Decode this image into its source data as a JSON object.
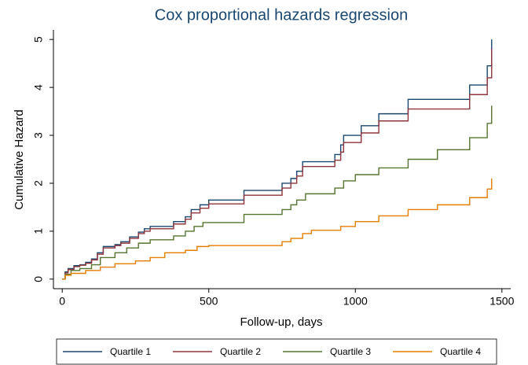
{
  "chart_data": {
    "type": "step",
    "title": "Cox proportional hazards regression",
    "xlabel": "Follow-up, days",
    "ylabel": "Cumulative Hazard",
    "xlim": [
      -30,
      1530
    ],
    "ylim": [
      -0.2,
      5.2
    ],
    "xticks": [
      0,
      500,
      1000,
      1500
    ],
    "yticks": [
      0,
      1,
      2,
      3,
      4,
      5
    ],
    "legend": "bottom",
    "series": [
      {
        "name": "Quartile 1",
        "color": "#1a476f",
        "x": [
          0,
          10,
          20,
          40,
          60,
          80,
          100,
          120,
          140,
          180,
          200,
          230,
          260,
          280,
          300,
          380,
          420,
          440,
          470,
          500,
          620,
          750,
          780,
          800,
          820,
          930,
          950,
          960,
          1020,
          1080,
          1180,
          1390,
          1450,
          1465
        ],
        "values": [
          0,
          0.15,
          0.22,
          0.28,
          0.3,
          0.35,
          0.42,
          0.55,
          0.68,
          0.72,
          0.78,
          0.88,
          0.98,
          1.05,
          1.1,
          1.2,
          1.3,
          1.45,
          1.55,
          1.65,
          1.85,
          2.0,
          2.1,
          2.25,
          2.45,
          2.6,
          2.8,
          3.0,
          3.2,
          3.45,
          3.75,
          4.05,
          4.45,
          5.0
        ]
      },
      {
        "name": "Quartile 2",
        "color": "#90353b",
        "x": [
          0,
          10,
          20,
          40,
          60,
          80,
          100,
          120,
          140,
          180,
          200,
          230,
          260,
          280,
          300,
          380,
          420,
          440,
          470,
          500,
          620,
          750,
          780,
          800,
          820,
          930,
          950,
          960,
          1020,
          1080,
          1180,
          1390,
          1450,
          1465
        ],
        "values": [
          0,
          0.13,
          0.2,
          0.26,
          0.29,
          0.33,
          0.4,
          0.52,
          0.65,
          0.7,
          0.75,
          0.85,
          0.95,
          1.0,
          1.05,
          1.15,
          1.25,
          1.38,
          1.48,
          1.57,
          1.75,
          1.9,
          2.0,
          2.15,
          2.35,
          2.48,
          2.65,
          2.85,
          3.05,
          3.3,
          3.55,
          3.85,
          4.2,
          4.8
        ]
      },
      {
        "name": "Quartile 3",
        "color": "#55752f",
        "x": [
          0,
          10,
          30,
          60,
          100,
          130,
          180,
          220,
          260,
          300,
          380,
          420,
          450,
          480,
          620,
          750,
          780,
          800,
          830,
          930,
          960,
          1000,
          1080,
          1180,
          1280,
          1390,
          1450,
          1465
        ],
        "values": [
          0,
          0.1,
          0.18,
          0.22,
          0.3,
          0.45,
          0.55,
          0.65,
          0.75,
          0.82,
          0.9,
          1.0,
          1.1,
          1.18,
          1.35,
          1.45,
          1.55,
          1.65,
          1.78,
          1.9,
          2.05,
          2.18,
          2.32,
          2.5,
          2.7,
          2.95,
          3.25,
          3.62
        ]
      },
      {
        "name": "Quartile 4",
        "color": "#e37e00",
        "x": [
          0,
          10,
          30,
          80,
          130,
          180,
          250,
          300,
          350,
          420,
          460,
          500,
          750,
          780,
          820,
          850,
          950,
          1000,
          1080,
          1180,
          1280,
          1390,
          1450,
          1465
        ],
        "values": [
          0,
          0.08,
          0.12,
          0.18,
          0.25,
          0.32,
          0.38,
          0.45,
          0.55,
          0.6,
          0.68,
          0.7,
          0.78,
          0.85,
          0.95,
          1.02,
          1.1,
          1.2,
          1.32,
          1.45,
          1.55,
          1.7,
          1.88,
          2.1
        ]
      }
    ]
  }
}
